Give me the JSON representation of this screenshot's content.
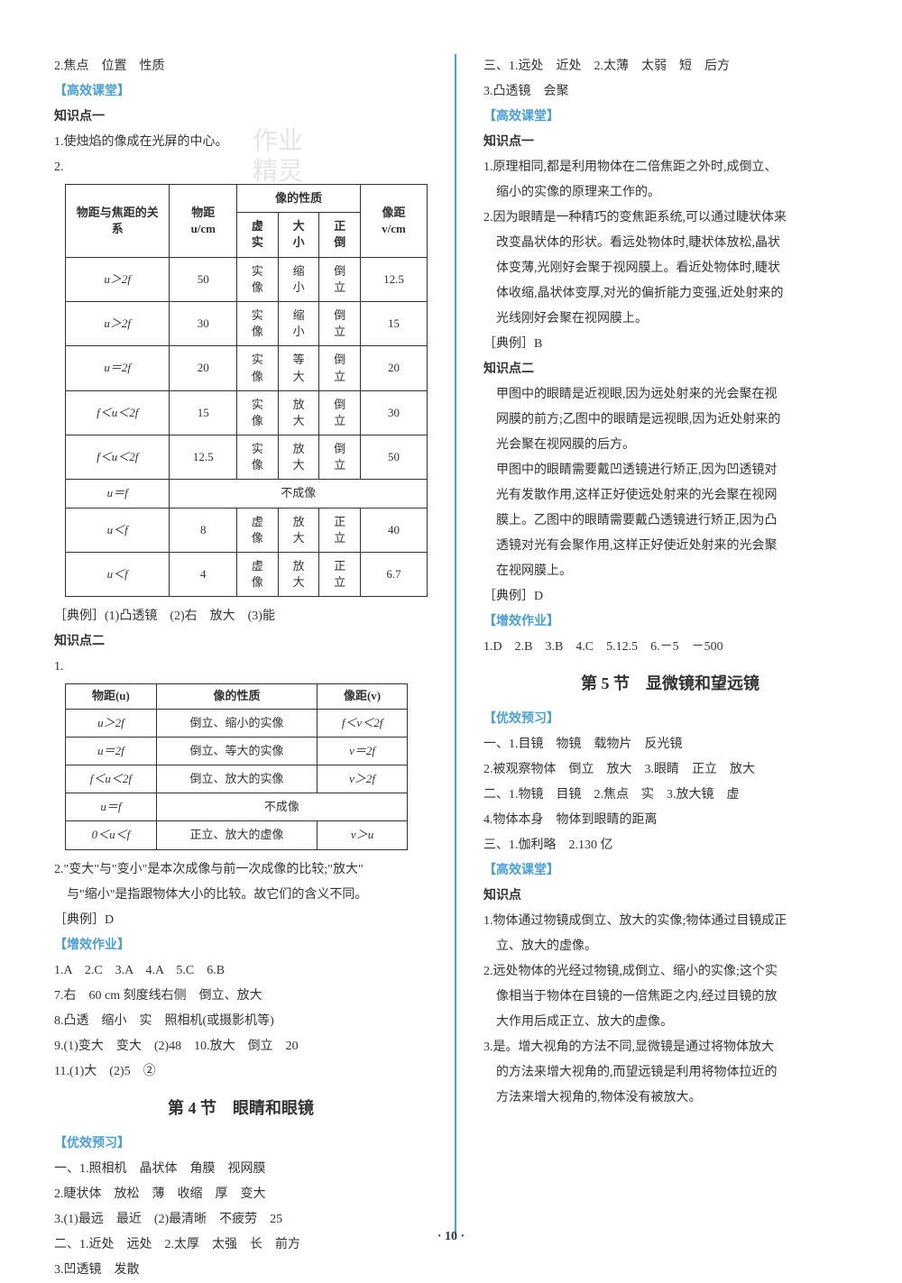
{
  "watermark_line1": "作业",
  "watermark_line2": "精灵",
  "page_number": "· 10 ·",
  "left": {
    "l1": "2.焦点　位置　性质",
    "gxkt": "【高效课堂】",
    "kp1": "知识点一",
    "l2": "1.使烛焰的像成在光屏的中心。",
    "l3": "2.",
    "table1": {
      "headers": [
        "物距与焦距的关系",
        "物距 u/cm",
        "虚实",
        "大小",
        "正倒",
        "像距 v/cm"
      ],
      "header_group": "像的性质",
      "rows": [
        [
          "u＞2f",
          "50",
          "实像",
          "缩小",
          "倒立",
          "12.5"
        ],
        [
          "u＞2f",
          "30",
          "实像",
          "缩小",
          "倒立",
          "15"
        ],
        [
          "u＝2f",
          "20",
          "实像",
          "等大",
          "倒立",
          "20"
        ],
        [
          "f＜u＜2f",
          "15",
          "实像",
          "放大",
          "倒立",
          "30"
        ],
        [
          "f＜u＜2f",
          "12.5",
          "实像",
          "放大",
          "倒立",
          "50"
        ],
        [
          "u＝f",
          "不成像"
        ],
        [
          "u＜f",
          "8",
          "虚像",
          "放大",
          "正立",
          "40"
        ],
        [
          "u＜f",
          "4",
          "虚像",
          "放大",
          "正立",
          "6.7"
        ]
      ]
    },
    "dl1": "［典例］(1)凸透镜　(2)右　放大　(3)能",
    "kp2": "知识点二",
    "l4": "1.",
    "table2": {
      "headers": [
        "物距(u)",
        "像的性质",
        "像距(v)"
      ],
      "rows": [
        [
          "u＞2f",
          "倒立、缩小的实像",
          "f＜v＜2f"
        ],
        [
          "u＝2f",
          "倒立、等大的实像",
          "v＝2f"
        ],
        [
          "f＜u＜2f",
          "倒立、放大的实像",
          "v＞2f"
        ],
        [
          "u＝f",
          "不成像"
        ],
        [
          "0＜u＜f",
          "正立、放大的虚像",
          "v＞u"
        ]
      ]
    },
    "l5a": "2.\"变大\"与\"变小\"是本次成像与前一次成像的比较;\"放大\"",
    "l5b": "　与\"缩小\"是指跟物体大小的比较。故它们的含义不同。",
    "dl2": "［典例］D",
    "zxzy": "【增效作业】",
    "z1": "1.A　2.C　3.A　4.A　5.C　6.B",
    "z2": "7.右　60 cm 刻度线右侧　倒立、放大",
    "z3": "8.凸透　缩小　实　照相机(或摄影机等)",
    "z4": "9.(1)变大　变大　(2)48　10.放大　倒立　20",
    "z5": "11.(1)大　(2)5　②",
    "sec4_title": "第 4 节　眼睛和眼镜",
    "yxyx": "【优效预习】",
    "y1": "一、1.照相机　晶状体　角膜　视网膜",
    "y2": "2.睫状体　放松　薄　收缩　厚　变大",
    "y3": "3.(1)最远　最近　(2)最清晰　不疲劳　25",
    "y4": "二、1.近处　远处　2.太厚　太强　长　前方",
    "y5": "3.凹透镜　发散"
  },
  "right": {
    "r1": "三、1.远处　近处　2.太薄　太弱　短　后方",
    "r2": "3.凸透镜　会聚",
    "gxkt": "【高效课堂】",
    "kp1": "知识点一",
    "r3a": "1.原理相同,都是利用物体在二倍焦距之外时,成倒立、",
    "r3b": "　缩小的实像的原理来工作的。",
    "r4a": "2.因为眼睛是一种精巧的变焦距系统,可以通过睫状体来",
    "r4b": "　改变晶状体的形状。看远处物体时,睫状体放松,晶状",
    "r4c": "　体变薄,光刚好会聚于视网膜上。看近处物体时,睫状",
    "r4d": "　体收缩,晶状体变厚,对光的偏折能力变强,近处射来的",
    "r4e": "　光线刚好会聚在视网膜上。",
    "dl1": "［典例］B",
    "kp2": "知识点二",
    "r5a": "　甲图中的眼睛是近视眼,因为远处射来的光会聚在视",
    "r5b": "　网膜的前方;乙图中的眼睛是远视眼,因为近处射来的",
    "r5c": "　光会聚在视网膜的后方。",
    "r6a": "　甲图中的眼睛需要戴凹透镜进行矫正,因为凹透镜对",
    "r6b": "　光有发散作用,这样正好使远处射来的光会聚在视网",
    "r6c": "　膜上。乙图中的眼睛需要戴凸透镜进行矫正,因为凸",
    "r6d": "　透镜对光有会聚作用,这样正好使近处射来的光会聚",
    "r6e": "　在视网膜上。",
    "dl2": "［典例］D",
    "zxzy": "【增效作业】",
    "z1": "1.D　2.B　3.B　4.C　5.12.5　6.－5　－500",
    "sec5_title": "第 5 节　显微镜和望远镜",
    "yxyx": "【优效预习】",
    "y1": "一、1.目镜　物镜　载物片　反光镜",
    "y2": "2.被观察物体　倒立　放大　3.眼睛　正立　放大",
    "y3": "二、1.物镜　目镜　2.焦点　实　3.放大镜　虚",
    "y4": "4.物体本身　物体到眼睛的距离",
    "y5": "三、1.伽利略　2.130 亿",
    "gxkt2": "【高效课堂】",
    "kp3": "知识点",
    "r7a": "1.物体通过物镜成倒立、放大的实像;物体通过目镜成正",
    "r7b": "　立、放大的虚像。",
    "r8a": "2.远处物体的光经过物镜,成倒立、缩小的实像;这个实",
    "r8b": "　像相当于物体在目镜的一倍焦距之内,经过目镜的放",
    "r8c": "　大作用后成正立、放大的虚像。",
    "r9a": "3.是。增大视角的方法不同,显微镜是通过将物体放大",
    "r9b": "　的方法来增大视角的,而望远镜是利用将物体拉近的",
    "r9c": "　方法来增大视角的,物体没有被放大。"
  }
}
